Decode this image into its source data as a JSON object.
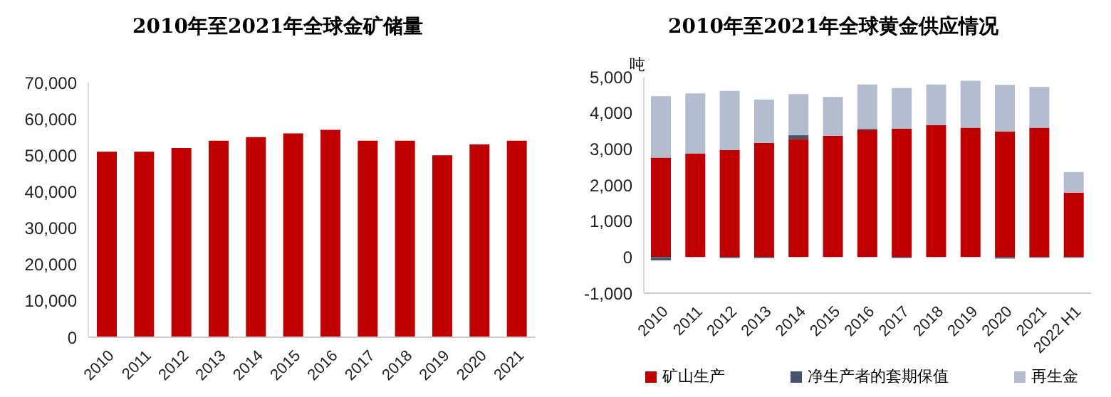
{
  "chart_data": [
    {
      "type": "bar",
      "title": "2010年至2021年全球金矿储量",
      "categories": [
        "2010",
        "2011",
        "2012",
        "2013",
        "2014",
        "2015",
        "2016",
        "2017",
        "2018",
        "2019",
        "2020",
        "2021"
      ],
      "values": [
        51000,
        51000,
        52000,
        54000,
        55000,
        56000,
        57000,
        54000,
        54000,
        50000,
        53000,
        54000
      ],
      "color": "#c00000",
      "ylim": [
        0,
        70000
      ],
      "yticks": [
        {
          "value": 0,
          "label": "0"
        },
        {
          "value": 10000,
          "label": "10,000"
        },
        {
          "value": 20000,
          "label": "20,000"
        },
        {
          "value": 30000,
          "label": "30,000"
        },
        {
          "value": 40000,
          "label": "40,000"
        },
        {
          "value": 50000,
          "label": "50,000"
        },
        {
          "value": 60000,
          "label": "60,000"
        },
        {
          "value": 70000,
          "label": "70,000"
        }
      ]
    },
    {
      "type": "bar",
      "title": "2010年至2021年全球黄金供应情况",
      "ylabel": "吨",
      "stacked": true,
      "legend": "bottom",
      "categories": [
        "2010",
        "2011",
        "2012",
        "2013",
        "2014",
        "2015",
        "2016",
        "2017",
        "2018",
        "2019",
        "2020",
        "2021",
        "2022 H1"
      ],
      "series": [
        {
          "name": "矿山生产",
          "color": "#c00000",
          "values": [
            2760,
            2870,
            2970,
            3170,
            3280,
            3360,
            3530,
            3560,
            3660,
            3590,
            3480,
            3590,
            1790
          ]
        },
        {
          "name": "净生产者的套期保值",
          "color": "#44546a",
          "values": [
            -90,
            0,
            -30,
            -30,
            100,
            null,
            30,
            -30,
            null,
            0,
            -40,
            -20,
            -20
          ]
        },
        {
          "name": "再生金",
          "color": "#b4bdd0",
          "values": [
            1700,
            1670,
            1640,
            1200,
            1140,
            1080,
            1230,
            1130,
            1130,
            1300,
            1300,
            1130,
            570
          ]
        }
      ],
      "ylim": [
        -1000,
        5000
      ],
      "yticks": [
        {
          "value": -1000,
          "label": "-1,000"
        },
        {
          "value": 0,
          "label": "0"
        },
        {
          "value": 1000,
          "label": "1,000"
        },
        {
          "value": 2000,
          "label": "2,000"
        },
        {
          "value": 3000,
          "label": "3,000"
        },
        {
          "value": 4000,
          "label": "4,000"
        },
        {
          "value": 5000,
          "label": "5,000"
        }
      ]
    }
  ]
}
